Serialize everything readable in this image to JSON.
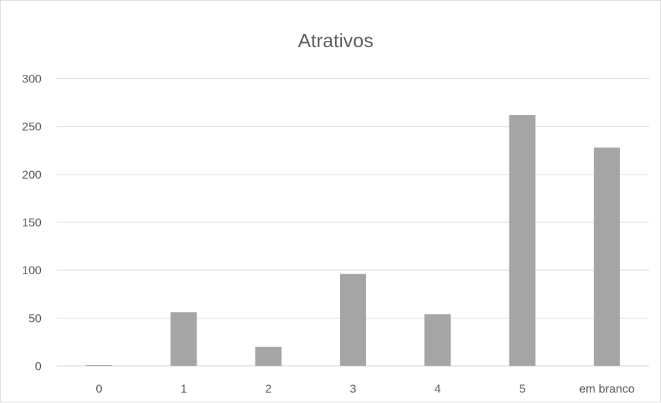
{
  "chart_data": {
    "type": "bar",
    "title": "Atrativos",
    "xlabel": "",
    "ylabel": "",
    "categories": [
      "0",
      "1",
      "2",
      "3",
      "4",
      "5",
      "em branco"
    ],
    "values": [
      1,
      56,
      20,
      96,
      54,
      262,
      228
    ],
    "ylim": [
      0,
      300
    ],
    "yticks": [
      "0",
      "50",
      "100",
      "150",
      "200",
      "250",
      "300"
    ],
    "grid": true,
    "legend": "none",
    "bar_color": "#a5a5a5",
    "grid_color": "#d9d9d9",
    "text_color": "#595959"
  }
}
